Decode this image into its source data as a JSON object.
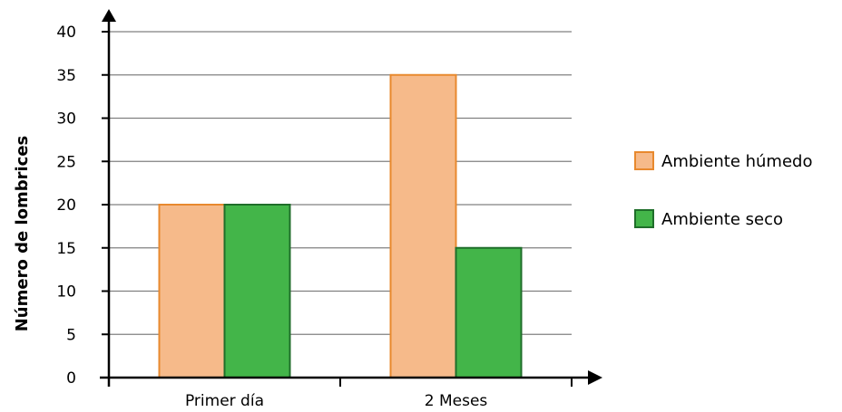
{
  "chart_data": {
    "type": "bar",
    "title": "",
    "xlabel": "",
    "ylabel": "Número de lombrices",
    "categories": [
      "Primer día",
      "2 Meses"
    ],
    "series": [
      {
        "name": "Ambiente húmedo",
        "values": [
          20,
          35
        ],
        "color": "#F6BA8A",
        "stroke": "#E8892E"
      },
      {
        "name": "Ambiente seco",
        "values": [
          20,
          15
        ],
        "color": "#43B549",
        "stroke": "#1F6E2A"
      }
    ],
    "ylim": [
      0,
      40
    ],
    "yticks": [
      0,
      5,
      10,
      15,
      20,
      25,
      30,
      35,
      40
    ],
    "grid": true,
    "legend_position": "right",
    "axis_color": "#000000",
    "grid_color": "#808080"
  }
}
